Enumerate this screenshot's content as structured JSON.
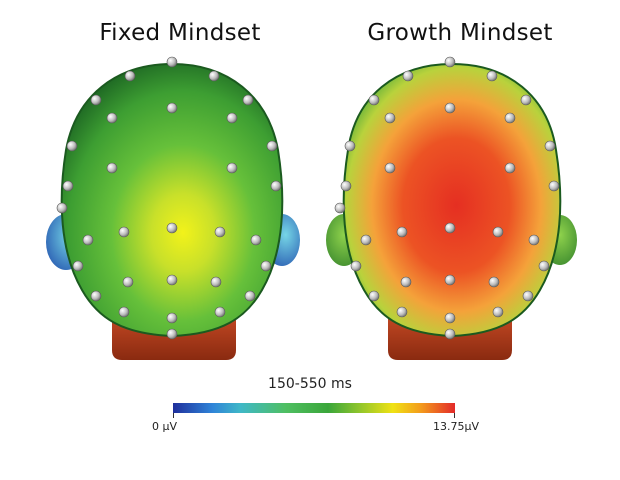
{
  "panels": [
    {
      "title": "Fixed Mindset",
      "colors": {
        "outer": "#1f7a2a",
        "mid": "#4bb43c",
        "center": "#eaf01c"
      }
    },
    {
      "title": "Growth Mindset",
      "colors": {
        "outer": "#2e8a2c",
        "mid": "#e8c22a",
        "center": "#e43a26"
      }
    }
  ],
  "colorbar": {
    "range_label": "150-550 ms",
    "min_label": "0 μV",
    "max_label": "13.75μV"
  }
}
